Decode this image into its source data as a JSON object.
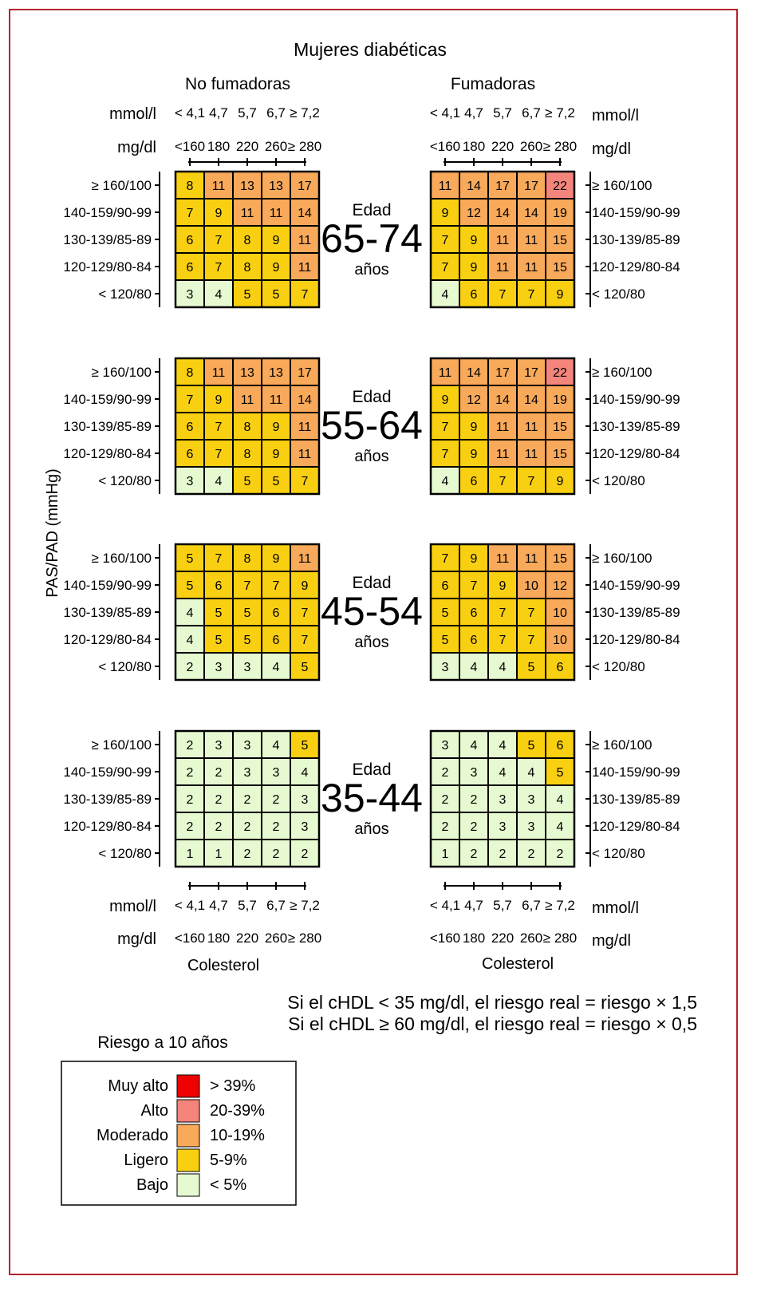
{
  "title": "Mujeres diabéticas",
  "groups": [
    "No fumadoras",
    "Fumadoras"
  ],
  "units": {
    "mmol": "mmol/l",
    "mg": "mg/dl"
  },
  "chol_mmol": [
    "< 4,1",
    "4,7",
    "5,7",
    "6,7",
    "≥ 7,2"
  ],
  "chol_mg": [
    "<160",
    "180",
    "220",
    "260",
    "≥ 280"
  ],
  "chol_label": "Colesterol",
  "bp_label": "PAS/PAD (mmHg)",
  "bp_rows": [
    "≥ 160/100",
    "140-159/90-99",
    "130-139/85-89",
    "120-129/80-84",
    "< 120/80"
  ],
  "age_word": "Edad",
  "years_word": "años",
  "chart_data": {
    "type": "heatmap",
    "title": "Mujeres diabéticas",
    "ylabel": "PAS/PAD (mmHg)",
    "xlabel": "Colesterol",
    "x_mmol": [
      "< 4,1",
      "4,7",
      "5,7",
      "6,7",
      "≥ 7,2"
    ],
    "x_mgdl": [
      "<160",
      "180",
      "220",
      "260",
      "≥ 280"
    ],
    "y": [
      "≥ 160/100",
      "140-159/90-99",
      "130-139/85-89",
      "120-129/80-84",
      "< 120/80"
    ],
    "ages": [
      {
        "age": "65-74",
        "no_fumadoras": [
          [
            8,
            11,
            13,
            13,
            17
          ],
          [
            7,
            9,
            11,
            11,
            14
          ],
          [
            6,
            7,
            8,
            9,
            11
          ],
          [
            6,
            7,
            8,
            9,
            11
          ],
          [
            3,
            4,
            5,
            5,
            7
          ]
        ],
        "fumadoras": [
          [
            11,
            14,
            17,
            17,
            22
          ],
          [
            9,
            12,
            14,
            14,
            19
          ],
          [
            7,
            9,
            11,
            11,
            15
          ],
          [
            7,
            9,
            11,
            11,
            15
          ],
          [
            4,
            6,
            7,
            7,
            9
          ]
        ]
      },
      {
        "age": "55-64",
        "no_fumadoras": [
          [
            8,
            11,
            13,
            13,
            17
          ],
          [
            7,
            9,
            11,
            11,
            14
          ],
          [
            6,
            7,
            8,
            9,
            11
          ],
          [
            6,
            7,
            8,
            9,
            11
          ],
          [
            3,
            4,
            5,
            5,
            7
          ]
        ],
        "fumadoras": [
          [
            11,
            14,
            17,
            17,
            22
          ],
          [
            9,
            12,
            14,
            14,
            19
          ],
          [
            7,
            9,
            11,
            11,
            15
          ],
          [
            7,
            9,
            11,
            11,
            15
          ],
          [
            4,
            6,
            7,
            7,
            9
          ]
        ]
      },
      {
        "age": "45-54",
        "no_fumadoras": [
          [
            5,
            7,
            8,
            9,
            11
          ],
          [
            5,
            6,
            7,
            7,
            9
          ],
          [
            4,
            5,
            5,
            6,
            7
          ],
          [
            4,
            5,
            5,
            6,
            7
          ],
          [
            2,
            3,
            3,
            4,
            5
          ]
        ],
        "fumadoras": [
          [
            7,
            9,
            11,
            11,
            15
          ],
          [
            6,
            7,
            9,
            10,
            12
          ],
          [
            5,
            6,
            7,
            7,
            10
          ],
          [
            5,
            6,
            7,
            7,
            10
          ],
          [
            3,
            4,
            4,
            5,
            6
          ]
        ]
      },
      {
        "age": "35-44",
        "no_fumadoras": [
          [
            2,
            3,
            3,
            4,
            5
          ],
          [
            2,
            2,
            3,
            3,
            4
          ],
          [
            2,
            2,
            2,
            2,
            3
          ],
          [
            2,
            2,
            2,
            2,
            3
          ],
          [
            1,
            1,
            2,
            2,
            2
          ]
        ],
        "fumadoras": [
          [
            3,
            4,
            4,
            5,
            6
          ],
          [
            2,
            3,
            4,
            4,
            5
          ],
          [
            2,
            2,
            3,
            3,
            4
          ],
          [
            2,
            2,
            3,
            3,
            4
          ],
          [
            1,
            2,
            2,
            2,
            2
          ]
        ]
      }
    ],
    "legend": {
      "title": "Riesgo a 10 años",
      "items": [
        {
          "label": "Muy alto",
          "range": "> 39%",
          "color": "#ee0000",
          "min": 40
        },
        {
          "label": "Alto",
          "range": "20-39%",
          "color": "#f4857c",
          "min": 20
        },
        {
          "label": "Moderado",
          "range": "10-19%",
          "color": "#f8a95a",
          "min": 10
        },
        {
          "label": "Ligero",
          "range": "5-9%",
          "color": "#f9d011",
          "min": 5
        },
        {
          "label": "Bajo",
          "range": "< 5%",
          "color": "#e6f9d0",
          "min": 0
        }
      ]
    },
    "notes": [
      "Si el cHDL < 35 mg/dl, el riesgo real = riesgo × 1,5",
      "Si el cHDL ≥ 60 mg/dl, el riesgo real = riesgo × 0,5"
    ]
  }
}
